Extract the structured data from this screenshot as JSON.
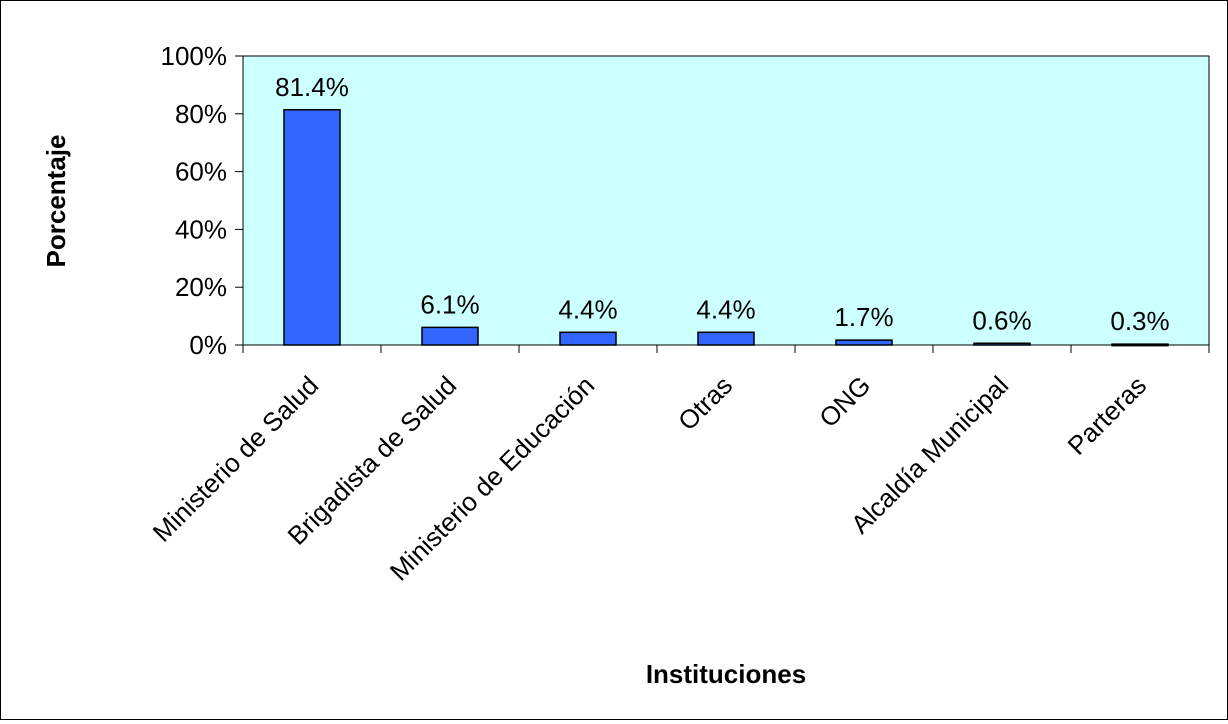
{
  "chart_data": {
    "type": "bar",
    "title": "",
    "xlabel": "Instituciones",
    "ylabel": "Porcentaje",
    "categories": [
      "Ministerio de Salud",
      "Brigadista de Salud",
      "Ministerio de Educación",
      "Otras",
      "ONG",
      "Alcaldía Municipal",
      "Parteras"
    ],
    "values": [
      81.4,
      6.1,
      4.4,
      4.4,
      1.7,
      0.6,
      0.3
    ],
    "data_labels": [
      "81.4%",
      "6.1%",
      "4.4%",
      "4.4%",
      "1.7%",
      "0.6%",
      "0.3%"
    ],
    "ylim": [
      0,
      100
    ],
    "yticks": [
      0,
      20,
      40,
      60,
      80,
      100
    ],
    "ytick_labels": [
      "0%",
      "20%",
      "40%",
      "60%",
      "80%",
      "100%"
    ],
    "grid": false,
    "legend": "none",
    "colors": {
      "bar_fill": "#3366ff",
      "bar_stroke": "#000000",
      "plot_background": "#ccffff"
    }
  }
}
